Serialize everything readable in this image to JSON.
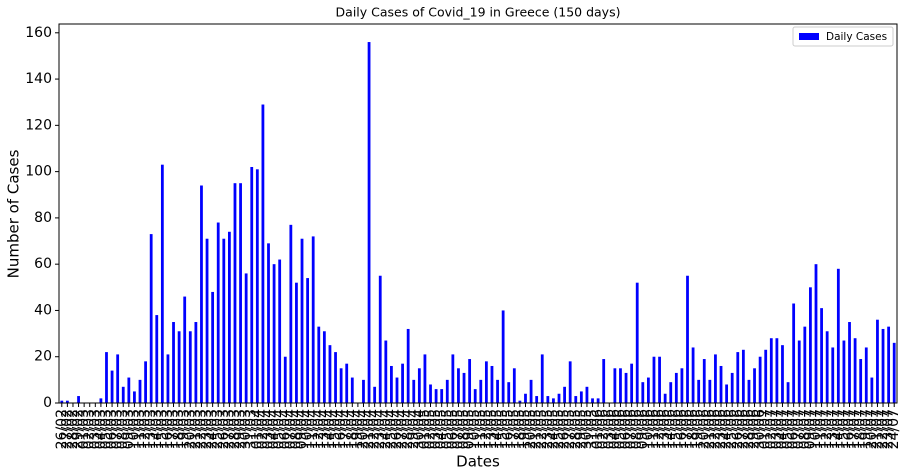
{
  "chart_data": {
    "type": "bar",
    "title": "Daily Cases of Covid_19 in Greece (150 days)",
    "x_label": "Dates",
    "y_label": "Number of Cases",
    "legend": "upper right",
    "grid": false,
    "ylim": [
      0,
      163.8
    ],
    "yticks": [
      0,
      20,
      40,
      60,
      80,
      100,
      120,
      140,
      160
    ],
    "categories": [
      "26/02",
      "27/02",
      "28/02",
      "29/02",
      "01/03",
      "02/03",
      "03/03",
      "04/03",
      "05/03",
      "06/03",
      "07/03",
      "08/03",
      "09/03",
      "10/03",
      "11/03",
      "12/03",
      "13/03",
      "14/03",
      "15/03",
      "16/03",
      "17/03",
      "18/03",
      "19/03",
      "20/03",
      "21/03",
      "22/03",
      "23/03",
      "24/03",
      "25/03",
      "26/03",
      "27/03",
      "28/03",
      "29/03",
      "30/03",
      "31/03",
      "01/04",
      "02/04",
      "03/04",
      "04/04",
      "05/04",
      "06/04",
      "07/04",
      "08/04",
      "09/04",
      "10/04",
      "11/04",
      "12/04",
      "13/04",
      "14/04",
      "15/04",
      "16/04",
      "17/04",
      "18/04",
      "19/04",
      "20/04",
      "21/04",
      "22/04",
      "23/04",
      "24/04",
      "25/04",
      "26/04",
      "27/04",
      "28/04",
      "29/04",
      "30/04",
      "01/05",
      "02/05",
      "03/05",
      "04/05",
      "05/05",
      "06/05",
      "07/05",
      "08/05",
      "09/05",
      "10/05",
      "11/05",
      "12/05",
      "13/05",
      "14/05",
      "15/05",
      "16/05",
      "17/05",
      "18/05",
      "19/05",
      "20/05",
      "21/05",
      "22/05",
      "23/05",
      "24/05",
      "25/05",
      "26/05",
      "27/05",
      "28/05",
      "29/05",
      "30/05",
      "31/05",
      "01/06",
      "02/06",
      "03/06",
      "04/06",
      "05/06",
      "06/06",
      "07/06",
      "08/06",
      "09/06",
      "10/06",
      "11/06",
      "12/06",
      "13/06",
      "14/06",
      "15/06",
      "16/06",
      "17/06",
      "18/06",
      "19/06",
      "20/06",
      "21/06",
      "22/06",
      "23/06",
      "24/06",
      "25/06",
      "26/06",
      "27/06",
      "28/06",
      "29/06",
      "30/06",
      "01/07",
      "02/07",
      "03/07",
      "04/07",
      "05/07",
      "06/07",
      "07/07",
      "08/07",
      "09/07",
      "10/07",
      "11/07",
      "12/07",
      "13/07",
      "14/07",
      "15/07",
      "16/07",
      "17/07",
      "18/07",
      "19/07",
      "20/07",
      "21/07",
      "22/07",
      "23/07",
      "24/07"
    ],
    "series": [
      {
        "name": "Daily Cases",
        "color": "#0000ff",
        "values": [
          1,
          1,
          0,
          3,
          0,
          0,
          0,
          2,
          22,
          14,
          21,
          7,
          11,
          5,
          10,
          18,
          73,
          38,
          103,
          21,
          35,
          31,
          46,
          31,
          35,
          94,
          71,
          48,
          78,
          71,
          74,
          95,
          95,
          56,
          102,
          101,
          129,
          69,
          60,
          62,
          20,
          77,
          52,
          71,
          54,
          72,
          33,
          31,
          25,
          22,
          15,
          17,
          11,
          0,
          10,
          156,
          7,
          55,
          27,
          16,
          11,
          17,
          32,
          10,
          15,
          21,
          8,
          6,
          6,
          10,
          21,
          15,
          13,
          19,
          6,
          10,
          18,
          16,
          10,
          40,
          9,
          15,
          1,
          4,
          10,
          3,
          21,
          3,
          2,
          4,
          7,
          18,
          3,
          5,
          7,
          2,
          2,
          19,
          0,
          15,
          15,
          13,
          17,
          52,
          9,
          11,
          20,
          20,
          4,
          9,
          13,
          15,
          55,
          24,
          10,
          19,
          10,
          21,
          16,
          8,
          13,
          22,
          23,
          10,
          15,
          20,
          23,
          28,
          28,
          25,
          9,
          43,
          27,
          33,
          50,
          60,
          41,
          31,
          24,
          58,
          27,
          35,
          28,
          19,
          24,
          11,
          36,
          32,
          33,
          26
        ]
      }
    ]
  }
}
